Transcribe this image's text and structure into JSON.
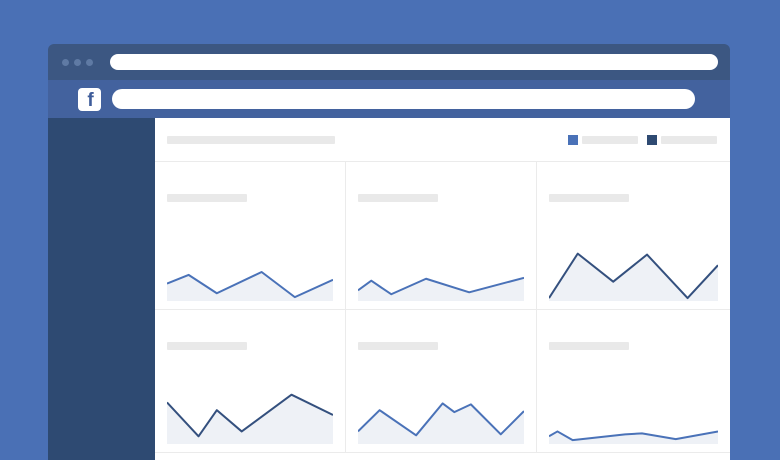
{
  "colors": {
    "background": "#4a70b5",
    "titlebar": "#3c5782",
    "toolbar": "#43629e",
    "sidebar": "#2e4a72",
    "dot": "#5f7aa4",
    "placeholder": "#e9e9e9",
    "divider": "#ebebeb",
    "line_blue": "#4a72b8",
    "line_navy": "#34507e",
    "chart_fill": "#eef1f6",
    "logo_f": "#3e5c9a"
  },
  "browser": {
    "window_controls_count": 3,
    "address_bar": {
      "value": "",
      "placeholder": ""
    }
  },
  "toolbar": {
    "logo_glyph": "f",
    "search": {
      "value": "",
      "placeholder": ""
    }
  },
  "header": {
    "legend": [
      {
        "name": "series-blue",
        "color": "#4a72b8"
      },
      {
        "name": "series-navy",
        "color": "#2e4a72"
      }
    ]
  },
  "cards": [
    {
      "id": 1,
      "series": "blue",
      "points": [
        [
          0,
          42
        ],
        [
          13,
          33
        ],
        [
          30,
          52
        ],
        [
          57,
          30
        ],
        [
          77,
          56
        ],
        [
          100,
          38
        ]
      ]
    },
    {
      "id": 2,
      "series": "blue",
      "points": [
        [
          0,
          49
        ],
        [
          8,
          39
        ],
        [
          20,
          53
        ],
        [
          41,
          37
        ],
        [
          67,
          51
        ],
        [
          100,
          36
        ]
      ]
    },
    {
      "id": 3,
      "series": "navy",
      "points": [
        [
          0,
          57
        ],
        [
          17,
          11
        ],
        [
          38,
          40
        ],
        [
          58,
          12
        ],
        [
          82,
          57
        ],
        [
          100,
          23
        ]
      ]
    },
    {
      "id": 4,
      "series": "navy",
      "points": [
        [
          0,
          17
        ],
        [
          19,
          52
        ],
        [
          30,
          25
        ],
        [
          45,
          47
        ],
        [
          75,
          9
        ],
        [
          100,
          30
        ]
      ]
    },
    {
      "id": 5,
      "series": "blue",
      "points": [
        [
          0,
          47
        ],
        [
          13,
          25
        ],
        [
          35,
          51
        ],
        [
          51,
          18
        ],
        [
          58,
          27
        ],
        [
          68,
          19
        ],
        [
          86,
          50
        ],
        [
          100,
          26
        ]
      ]
    },
    {
      "id": 6,
      "series": "blue",
      "points": [
        [
          0,
          52
        ],
        [
          5,
          47
        ],
        [
          14,
          56
        ],
        [
          45,
          50
        ],
        [
          55,
          49
        ],
        [
          75,
          55
        ],
        [
          100,
          47
        ]
      ]
    }
  ]
}
